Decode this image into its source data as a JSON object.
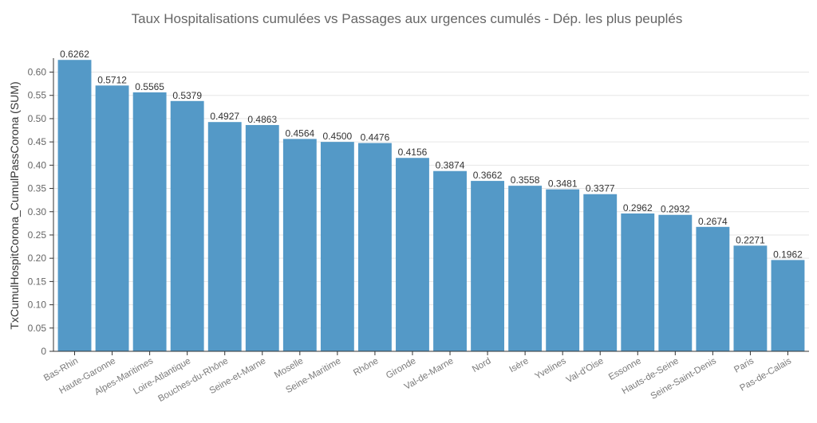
{
  "chart_data": {
    "type": "bar",
    "title": "Taux Hospitalisations cumulées vs Passages aux urgences cumulés - Dép.  les plus peuplés",
    "xlabel": "",
    "ylabel": "TxCumulHospitCorona_CumulPassCorona (SUM)",
    "ylim": [
      0,
      0.63
    ],
    "yticks": [
      0,
      0.05,
      0.1,
      0.15,
      0.2,
      0.25,
      0.3,
      0.35,
      0.4,
      0.45,
      0.5,
      0.55,
      0.6
    ],
    "ytick_labels": [
      "0",
      "0.05",
      "0.10",
      "0.15",
      "0.20",
      "0.25",
      "0.30",
      "0.35",
      "0.40",
      "0.45",
      "0.50",
      "0.55",
      "0.60"
    ],
    "grid": true,
    "bar_color": "#5499c7",
    "categories": [
      "Bas-Rhin",
      "Haute-Garonne",
      "Alpes-Maritimes",
      "Loire-Atlantique",
      "Bouches-du-Rhône",
      "Seine-et-Marne",
      "Moselle",
      "Seine-Maritime",
      "Rhône",
      "Gironde",
      "Val-de-Marne",
      "Nord",
      "Isère",
      "Yvelines",
      "Val-d'Oise",
      "Essonne",
      "Hauts-de-Seine",
      "Seine-Saint-Denis",
      "Paris",
      "Pas-de-Calais"
    ],
    "values": [
      0.6262,
      0.5712,
      0.5565,
      0.5379,
      0.4927,
      0.4863,
      0.4564,
      0.45,
      0.4476,
      0.4156,
      0.3874,
      0.3662,
      0.3558,
      0.3481,
      0.3377,
      0.2962,
      0.2932,
      0.2674,
      0.2271,
      0.1962
    ],
    "value_labels": [
      "0.6262",
      "0.5712",
      "0.5565",
      "0.5379",
      "0.4927",
      "0.4863",
      "0.4564",
      "0.4500",
      "0.4476",
      "0.4156",
      "0.3874",
      "0.3662",
      "0.3558",
      "0.3481",
      "0.3377",
      "0.2962",
      "0.2932",
      "0.2674",
      "0.2271",
      "0.1962"
    ]
  }
}
